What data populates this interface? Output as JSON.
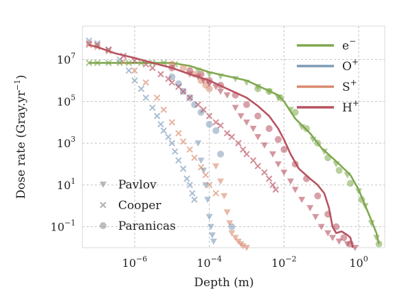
{
  "chart_data": {
    "type": "line",
    "title": "",
    "xlabel": "Depth (m)",
    "ylabel_base": "Dose rate (Gray.yr",
    "ylabel_exp": "−1",
    "ylabel_tail": ")",
    "xscale": "log",
    "yscale": "log",
    "xlim": [
      4e-08,
      5
    ],
    "ylim": [
      0.01,
      400000000.0
    ],
    "xticks": [
      {
        "value": 1e-06,
        "base": "10",
        "exp": "−6"
      },
      {
        "value": 0.0001,
        "base": "10",
        "exp": "−4"
      },
      {
        "value": 0.01,
        "base": "10",
        "exp": "−2"
      },
      {
        "value": 1,
        "base": "10",
        "exp": "0"
      }
    ],
    "yticks": [
      {
        "value": 0.1,
        "base": "10",
        "exp": "−1"
      },
      {
        "value": 10,
        "base": "10",
        "exp": "1"
      },
      {
        "value": 1000,
        "base": "10",
        "exp": "3"
      },
      {
        "value": 100000,
        "base": "10",
        "exp": "5"
      },
      {
        "value": 10000000,
        "base": "10",
        "exp": "7"
      }
    ],
    "grid": true,
    "series": [
      {
        "name": "e",
        "name_sup": "−",
        "color": "#7fa84e",
        "line": [
          [
            6e-08,
            7000000.0
          ],
          [
            1e-07,
            7000000.0
          ],
          [
            1e-06,
            7000000.0
          ],
          [
            1e-05,
            7000000.0
          ],
          [
            3e-05,
            5000000.0
          ],
          [
            0.0001,
            2500000.0
          ],
          [
            0.001,
            1000000.0
          ],
          [
            0.003,
            400000.0
          ],
          [
            0.007,
            200000.0
          ],
          [
            0.01,
            100000.0
          ],
          [
            0.02,
            15000.0
          ],
          [
            0.05,
            3000.0
          ],
          [
            0.1,
            600.0
          ],
          [
            0.3,
            100.0
          ],
          [
            0.6,
            30.0
          ],
          [
            1.0,
            6
          ],
          [
            2.0,
            0.3
          ],
          [
            3.0,
            0.05
          ],
          [
            3.5,
            0.015
          ]
        ],
        "markers": {
          "cooper": [
            [
              6e-08,
              7000000.0
            ],
            [
              1e-07,
              7000000.0
            ],
            [
              2e-07,
              7000000.0
            ],
            [
              4e-07,
              7000000.0
            ],
            [
              7e-07,
              7000000.0
            ],
            [
              1.5e-06,
              7000000.0
            ],
            [
              3e-06,
              7000000.0
            ],
            [
              6e-06,
              7000000.0
            ],
            [
              1.2e-05,
              6000000.0
            ]
          ],
          "pavlov": [
            [
              5e-05,
              3000000.0
            ],
            [
              0.0001,
              2000000.0
            ],
            [
              0.0002,
              1600000.0
            ],
            [
              0.0005,
              1200000.0
            ],
            [
              0.001,
              800000.0
            ],
            [
              0.002,
              500000.0
            ],
            [
              0.004,
              300000.0
            ],
            [
              0.007,
              150000.0
            ],
            [
              0.015,
              40000.0
            ],
            [
              0.03,
              6000.0
            ],
            [
              0.06,
              1500.0
            ],
            [
              0.12,
              400.0
            ],
            [
              0.25,
              100.0
            ],
            [
              0.5,
              30.0
            ],
            [
              1.0,
              5
            ],
            [
              1.5,
              1
            ],
            [
              2.2,
              0.15
            ],
            [
              3.0,
              0.03
            ]
          ],
          "paranicas": [
            [
              0.002,
              400000.0
            ],
            [
              0.004,
              300000.0
            ],
            [
              0.008,
              150000.0
            ],
            [
              0.02,
              30000.0
            ],
            [
              0.04,
              5000.0
            ],
            [
              0.08,
              1000.0
            ],
            [
              0.15,
              200.0
            ],
            [
              0.3,
              50.0
            ],
            [
              0.6,
              12.0
            ],
            [
              1.2,
              2
            ],
            [
              3.5,
              0.015
            ]
          ]
        }
      },
      {
        "name": "O",
        "name_sup": "+",
        "color": "#7d9bb8",
        "line": [],
        "markers": {
          "cooper": [
            [
              6e-08,
              80000000.0
            ],
            [
              1e-07,
              60000000.0
            ],
            [
              2e-07,
              30000000.0
            ],
            [
              4e-07,
              10000000.0
            ],
            [
              7e-07,
              3000000.0
            ],
            [
              1e-06,
              1000000.0
            ],
            [
              1.5e-06,
              400000.0
            ],
            [
              2e-06,
              150000.0
            ],
            [
              3e-06,
              50000.0
            ],
            [
              4e-06,
              20000.0
            ],
            [
              5e-06,
              8000.0
            ],
            [
              6e-06,
              4000.0
            ],
            [
              8e-06,
              2000.0
            ],
            [
              1e-05,
              1000.0
            ],
            [
              1.2e-05,
              400.0
            ],
            [
              1.5e-05,
              150.0
            ],
            [
              2e-05,
              60.0
            ],
            [
              2.5e-05,
              20.0
            ],
            [
              3e-05,
              10.0
            ],
            [
              3.5e-05,
              4
            ],
            [
              4e-05,
              2
            ]
          ],
          "pavlov": [
            [
              5e-05,
              1000.0
            ],
            [
              6e-05,
              150.0
            ],
            [
              7e-05,
              50.0
            ],
            [
              8e-05,
              10.0
            ],
            [
              9e-05,
              2
            ],
            [
              0.0001,
              0.3
            ],
            [
              0.00011,
              0.1
            ],
            [
              0.00012,
              0.04
            ],
            [
              0.00013,
              0.02
            ]
          ],
          "paranicas": [
            [
              1e-05,
              1500000.0
            ],
            [
              1.5e-05,
              700000.0
            ],
            [
              2e-05,
              300000.0
            ],
            [
              3e-05,
              150000.0
            ],
            [
              4e-05,
              70000.0
            ],
            [
              6e-05,
              30000.0
            ],
            [
              0.0001,
              8000.0
            ],
            [
              0.00015,
              4000.0
            ],
            [
              0.0002,
              300.0
            ],
            [
              0.0004,
              0.1
            ]
          ]
        }
      },
      {
        "name": "S",
        "name_sup": "+",
        "color": "#d88a6e",
        "line": [],
        "markers": {
          "cooper": [
            [
              6e-08,
              50000000.0
            ],
            [
              1e-07,
              40000000.0
            ],
            [
              2e-07,
              25000000.0
            ],
            [
              5e-07,
              8000000.0
            ],
            [
              1e-06,
              3000000.0
            ],
            [
              2e-06,
              800000.0
            ],
            [
              4e-06,
              150000.0
            ],
            [
              6e-06,
              40000.0
            ],
            [
              1e-05,
              10000.0
            ],
            [
              1.5e-05,
              3000.0
            ],
            [
              2e-05,
              1200.0
            ],
            [
              3e-05,
              500.0
            ],
            [
              4e-05,
              200.0
            ],
            [
              6e-05,
              70.0
            ],
            [
              8e-05,
              30.0
            ],
            [
              0.0001,
              10.0
            ],
            [
              0.00015,
              4
            ]
          ],
          "pavlov": [
            [
              0.00015,
              80.0
            ],
            [
              0.0002,
              15.0
            ],
            [
              0.00025,
              3
            ],
            [
              0.0003,
              0.5
            ],
            [
              0.00035,
              0.15
            ],
            [
              0.0004,
              0.05
            ],
            [
              0.0005,
              0.03
            ],
            [
              0.0006,
              0.02
            ],
            [
              0.0007,
              0.015
            ],
            [
              0.0008,
              0.012
            ],
            [
              0.001,
              0.01
            ]
          ],
          "paranicas": [
            [
              1e-05,
              6000000.0
            ],
            [
              2e-05,
              4000000.0
            ],
            [
              4e-05,
              2000000.0
            ],
            [
              6e-05,
              1000000.0
            ],
            [
              8e-05,
              600000.0
            ],
            [
              0.0001,
              400000.0
            ]
          ]
        }
      },
      {
        "name": "H",
        "name_sup": "+",
        "color": "#b8525f",
        "line": [
          [
            6e-08,
            50000000.0
          ],
          [
            1e-07,
            40000000.0
          ],
          [
            3e-07,
            20000000.0
          ],
          [
            1e-06,
            12000000.0
          ],
          [
            3e-06,
            7000000.0
          ],
          [
            1e-05,
            4000000.0
          ],
          [
            3e-05,
            2000000.0
          ],
          [
            0.0001,
            1000000.0
          ],
          [
            0.0003,
            400000.0
          ],
          [
            0.001,
            150000.0
          ],
          [
            0.002,
            60000.0
          ],
          [
            0.004,
            20000.0
          ],
          [
            0.007,
            5000.0
          ],
          [
            0.01,
            1500.0
          ],
          [
            0.015,
            300.0
          ],
          [
            0.025,
            60.0
          ],
          [
            0.05,
            20.0
          ],
          [
            0.08,
            10.0
          ],
          [
            0.12,
            4
          ],
          [
            0.16,
            0.8
          ],
          [
            0.2,
            0.1
          ],
          [
            0.25,
            0.05
          ],
          [
            0.35,
            0.06
          ],
          [
            0.5,
            0.04
          ],
          [
            0.6,
            0.03
          ],
          [
            0.7,
            0.01
          ]
        ],
        "markers": {
          "cooper": [
            [
              6e-08,
              60000000.0
            ],
            [
              1e-07,
              50000000.0
            ],
            [
              2e-07,
              30000000.0
            ],
            [
              5e-07,
              15000000.0
            ],
            [
              1e-06,
              9000000.0
            ],
            [
              2e-06,
              6000000.0
            ],
            [
              3e-06,
              4000000.0
            ],
            [
              5e-06,
              2000000.0
            ],
            [
              8e-06,
              1200000.0
            ],
            [
              1e-05,
              800000.0
            ],
            [
              1.5e-05,
              500000.0
            ],
            [
              2e-05,
              300000.0
            ],
            [
              3e-05,
              150000.0
            ],
            [
              5e-05,
              70000.0
            ],
            [
              7e-05,
              40000.0
            ],
            [
              0.0001,
              20000.0
            ],
            [
              0.00015,
              10000.0
            ],
            [
              0.0002,
              7000.0
            ],
            [
              0.0003,
              3000.0
            ],
            [
              0.0004,
              2000.0
            ],
            [
              0.0006,
              1000.0
            ],
            [
              0.0008,
              500.0
            ],
            [
              0.001,
              300.0
            ],
            [
              0.0015,
              150.0
            ],
            [
              0.002,
              80.0
            ],
            [
              0.003,
              40.0
            ],
            [
              0.004,
              20.0
            ],
            [
              0.005,
              10.0
            ],
            [
              0.006,
              6
            ]
          ],
          "pavlov": [
            [
              3e-05,
              2000000.0
            ],
            [
              5e-05,
              1500000.0
            ],
            [
              7e-05,
              1000000.0
            ],
            [
              0.0001,
              700000.0
            ],
            [
              0.00015,
              500000.0
            ],
            [
              0.0002,
              300000.0
            ],
            [
              0.0003,
              200000.0
            ],
            [
              0.0005,
              50000.0
            ],
            [
              0.0007,
              20000.0
            ],
            [
              0.001,
              10000.0
            ],
            [
              0.0015,
              5000.0
            ],
            [
              0.002,
              2000.0
            ],
            [
              0.003,
              800.0
            ],
            [
              0.005,
              300.0
            ],
            [
              0.007,
              100.0
            ],
            [
              0.01,
              40.0
            ],
            [
              0.015,
              15.0
            ],
            [
              0.02,
              6
            ],
            [
              0.03,
              2
            ],
            [
              0.05,
              0.8
            ],
            [
              0.07,
              0.3
            ],
            [
              0.1,
              0.1
            ],
            [
              0.15,
              0.05
            ],
            [
              0.2,
              0.03
            ],
            [
              0.3,
              0.02
            ],
            [
              0.5,
              0.015
            ],
            [
              0.8,
              0.01
            ]
          ],
          "paranicas": [
            [
              1e-05,
              4000000.0
            ],
            [
              3e-05,
              3000000.0
            ],
            [
              6e-05,
              2000000.0
            ],
            [
              0.0001,
              1000000.0
            ],
            [
              0.0002,
              600000.0
            ],
            [
              0.0005,
              200000.0
            ],
            [
              0.001,
              70000.0
            ],
            [
              0.002,
              20000.0
            ],
            [
              0.004,
              5000.0
            ],
            [
              0.007,
              1500.0
            ],
            [
              0.01,
              500.0
            ],
            [
              0.02,
              100.0
            ],
            [
              0.04,
              20.0
            ],
            [
              0.08,
              3
            ],
            [
              0.15,
              0.4
            ],
            [
              0.25,
              0.1
            ],
            [
              0.4,
              0.03
            ],
            [
              0.6,
              0.015
            ]
          ]
        }
      }
    ],
    "marker_legend": [
      {
        "key": "pavlov",
        "label": "Pavlov",
        "color": "#888888"
      },
      {
        "key": "cooper",
        "label": "Cooper",
        "color": "#888888"
      },
      {
        "key": "paranicas",
        "label": "Paranicas",
        "color": "#888888"
      }
    ]
  }
}
